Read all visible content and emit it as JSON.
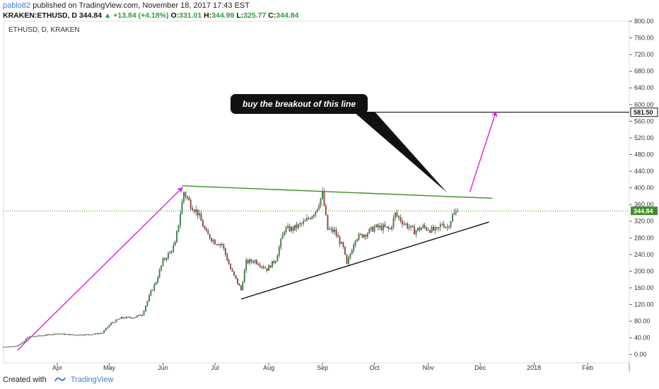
{
  "header": {
    "username": "pablo82",
    "published_text": "published on TradingView.com, November 18, 2017 17:43 EST",
    "symbol_line": "KRAKEN:ETHUSD, D",
    "last_price": "344.84",
    "change": "+13.84 (+4.18%)",
    "open_label": "O:",
    "open": "331.01",
    "high_label": "H:",
    "high": "344.99",
    "low_label": "L:",
    "low": "325.77",
    "close_label": "C:",
    "close": "344.84"
  },
  "footer": {
    "created_with": "Created with",
    "brand": "TradingView"
  },
  "colors": {
    "up": "#2e9b3c",
    "down": "#c0392b",
    "magenta_arrow": "#e020e0",
    "resistance_line": "#3f8f2a",
    "support_line": "#111111",
    "callout_bg": "#111111",
    "price_tag_bg": "#3f8f2a"
  },
  "chart_data": {
    "type": "candlestick",
    "symbol_label": "ETHUSD, D, KRAKEN",
    "y_ticks": [
      0,
      40,
      80,
      120,
      160,
      200,
      240,
      280,
      320,
      360,
      400,
      440,
      480,
      520,
      560,
      600,
      640,
      680,
      720,
      760,
      800
    ],
    "y_tick_labels": [
      "0.00",
      "40.00",
      "80.00",
      "120.00",
      "160.00",
      "200.00",
      "240.00",
      "280.00",
      "320.00",
      "360.00",
      "400.00",
      "440.00",
      "480.00",
      "520.00",
      "560.00",
      "600.00",
      "640.00",
      "680.00",
      "720.00",
      "760.00",
      "800.00"
    ],
    "ylim": [
      -20,
      800
    ],
    "x_start": "2017-03-01",
    "x_end": "2018-02-25",
    "x_ticks": [
      {
        "date": "2017-04-01",
        "label": "Apr"
      },
      {
        "date": "2017-05-01",
        "label": "May"
      },
      {
        "date": "2017-06-01",
        "label": "Jun"
      },
      {
        "date": "2017-07-01",
        "label": "Jul"
      },
      {
        "date": "2017-08-01",
        "label": "Aug"
      },
      {
        "date": "2017-09-01",
        "label": "Sep"
      },
      {
        "date": "2017-10-01",
        "label": "Oct"
      },
      {
        "date": "2017-11-01",
        "label": "Nov"
      },
      {
        "date": "2017-12-01",
        "label": "Dec"
      },
      {
        "date": "2018-01-01",
        "label": "2018"
      },
      {
        "date": "2018-02-01",
        "label": "Feb"
      }
    ],
    "price_anchors": [
      [
        "2017-03-01",
        18
      ],
      [
        "2017-03-08",
        20
      ],
      [
        "2017-03-12",
        28
      ],
      [
        "2017-03-15",
        42
      ],
      [
        "2017-03-20",
        44
      ],
      [
        "2017-03-26",
        47
      ],
      [
        "2017-04-01",
        50
      ],
      [
        "2017-04-10",
        47
      ],
      [
        "2017-04-20",
        48
      ],
      [
        "2017-04-27",
        52
      ],
      [
        "2017-05-02",
        75
      ],
      [
        "2017-05-08",
        88
      ],
      [
        "2017-05-15",
        89
      ],
      [
        "2017-05-20",
        96
      ],
      [
        "2017-05-25",
        150
      ],
      [
        "2017-05-28",
        175
      ],
      [
        "2017-06-01",
        225
      ],
      [
        "2017-06-05",
        245
      ],
      [
        "2017-06-08",
        265
      ],
      [
        "2017-06-11",
        340
      ],
      [
        "2017-06-13",
        390
      ],
      [
        "2017-06-17",
        360
      ],
      [
        "2017-06-21",
        340
      ],
      [
        "2017-06-26",
        290
      ],
      [
        "2017-07-01",
        270
      ],
      [
        "2017-07-05",
        265
      ],
      [
        "2017-07-10",
        205
      ],
      [
        "2017-07-16",
        155
      ],
      [
        "2017-07-19",
        222
      ],
      [
        "2017-07-24",
        225
      ],
      [
        "2017-07-31",
        205
      ],
      [
        "2017-08-05",
        228
      ],
      [
        "2017-08-10",
        300
      ],
      [
        "2017-08-15",
        302
      ],
      [
        "2017-08-22",
        318
      ],
      [
        "2017-08-28",
        345
      ],
      [
        "2017-09-01",
        385
      ],
      [
        "2017-09-04",
        300
      ],
      [
        "2017-09-08",
        295
      ],
      [
        "2017-09-13",
        255
      ],
      [
        "2017-09-15",
        215
      ],
      [
        "2017-09-20",
        280
      ],
      [
        "2017-09-26",
        290
      ],
      [
        "2017-10-01",
        305
      ],
      [
        "2017-10-06",
        305
      ],
      [
        "2017-10-10",
        300
      ],
      [
        "2017-10-13",
        337
      ],
      [
        "2017-10-18",
        315
      ],
      [
        "2017-10-24",
        296
      ],
      [
        "2017-10-29",
        306
      ],
      [
        "2017-11-02",
        300
      ],
      [
        "2017-11-06",
        297
      ],
      [
        "2017-11-09",
        315
      ],
      [
        "2017-11-12",
        305
      ],
      [
        "2017-11-15",
        333
      ],
      [
        "2017-11-18",
        344.84
      ]
    ],
    "last_price": 344.84,
    "last_price_label": "344.84",
    "target_price": 581.5,
    "target_label": "581.50",
    "annotation": "buy the breakout of this line",
    "lines": {
      "resistance": {
        "from": [
          "2017-06-12",
          405
        ],
        "to": [
          "2017-12-08",
          375
        ]
      },
      "support": {
        "from": [
          "2017-07-16",
          133
        ],
        "to": [
          "2017-12-06",
          318
        ]
      },
      "target_level": {
        "from": [
          "2017-10-01",
          581.5
        ],
        "to": [
          "2018-02-25",
          581.5
        ]
      },
      "arrow_up_1": {
        "from": [
          "2017-03-09",
          10
        ],
        "to": [
          "2017-06-12",
          400
        ]
      },
      "arrow_up_2": {
        "from": [
          "2017-11-25",
          390
        ],
        "to": [
          "2017-12-10",
          582
        ]
      }
    }
  }
}
